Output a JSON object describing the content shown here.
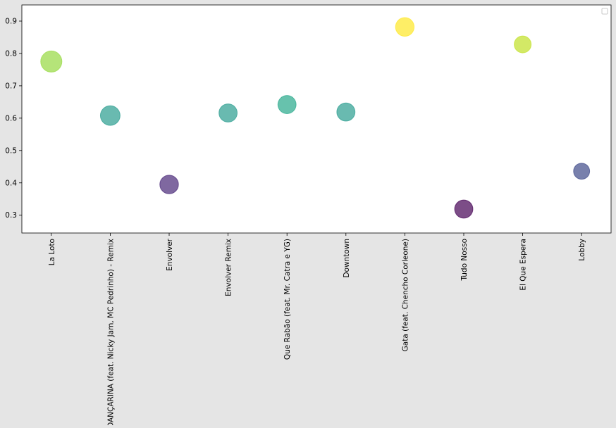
{
  "chart_data": {
    "type": "scatter",
    "title": "",
    "xlabel": "",
    "ylabel": "",
    "categories": [
      "La Loto",
      "DANÇARINA (feat. Nicky Jam, MC Pedrinho) - Remix",
      "Envolver",
      "Envolver Remix",
      "Que Rabão (feat. Mr. Catra e YG)",
      "Downtown",
      "Gata (feat. Chencho Corleone)",
      "Tudo Nosso",
      "El Que Espera",
      "Lobby"
    ],
    "values": [
      0.775,
      0.608,
      0.395,
      0.616,
      0.642,
      0.619,
      0.882,
      0.319,
      0.828,
      0.436
    ],
    "marker_colors": [
      "#95d840",
      "#2a9d8f",
      "#482878",
      "#2a9d8f",
      "#26a88a",
      "#2a9d8f",
      "#fde725",
      "#440154",
      "#c0df25",
      "#3e4a89"
    ],
    "marker_relative_size": [
      1.0,
      0.93,
      0.88,
      0.86,
      0.86,
      0.86,
      0.88,
      0.86,
      0.8,
      0.76
    ],
    "marker_opacity": 0.7,
    "ylim": [
      0.245,
      0.95
    ],
    "yticks": [
      0.3,
      0.4,
      0.5,
      0.6,
      0.7,
      0.8,
      0.9
    ],
    "ytick_labels": [
      "0.3",
      "0.4",
      "0.5",
      "0.6",
      "0.7",
      "0.8",
      "0.9"
    ],
    "grid": false,
    "legend": {
      "position": "top-right",
      "entries": []
    },
    "colormap": "viridis",
    "background_color": "#e5e5e5",
    "plot_background_color": "#ffffff"
  }
}
